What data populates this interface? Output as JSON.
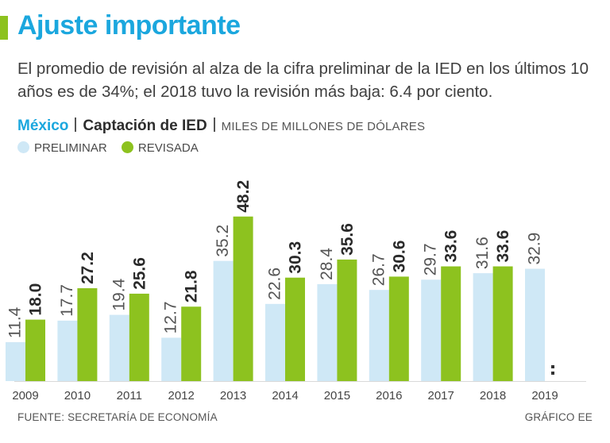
{
  "colors": {
    "accent": "#8dc21f",
    "title": "#1ba7de",
    "preliminar": "#cfe8f6",
    "revisada": "#8dc21f",
    "text": "#3a3a3a"
  },
  "title": "Ajuste importante",
  "subtitle": "El promedio de revisión al alza de la cifra preliminar de la IED en los últimos 10 años es de 34%; el 2018 tuvo la revisión más baja: 6.4 por ciento.",
  "heading": {
    "country": "México",
    "series_title": "Captación de IED",
    "units": "MILES DE MILLONES DE DÓLARES"
  },
  "legend": {
    "preliminar": "PRELIMINAR",
    "revisada": "REVISADA"
  },
  "chart_data": {
    "type": "bar",
    "title": "Captación de IED",
    "ylabel": "Miles de millones de dólares",
    "xlabel": "",
    "ylim": [
      0,
      50
    ],
    "categories": [
      "2009",
      "2010",
      "2011",
      "2012",
      "2013",
      "2014",
      "2015",
      "2016",
      "2017",
      "2018",
      "2019"
    ],
    "series": [
      {
        "name": "PRELIMINAR",
        "values": [
          11.4,
          17.7,
          19.4,
          12.7,
          35.2,
          22.6,
          28.4,
          26.7,
          29.7,
          31.6,
          32.9
        ],
        "labels": [
          "11.4",
          "17.7",
          "19.4",
          "12.7",
          "35.2",
          "22.6",
          "28.4",
          "26.7",
          "29.7",
          "31.6",
          "32.9"
        ]
      },
      {
        "name": "REVISADA",
        "values": [
          18.0,
          27.2,
          25.6,
          21.8,
          48.2,
          30.3,
          35.6,
          30.6,
          33.6,
          33.6,
          null
        ],
        "labels": [
          "18.0",
          "27.2",
          "25.6",
          "21.8",
          "48.2",
          "30.3",
          "35.6",
          "30.6",
          "33.6",
          "33.6",
          ""
        ]
      }
    ]
  },
  "footer": {
    "source": "FUENTE: SECRETARÍA DE ECONOMÍA",
    "credit": "GRÁFICO EE"
  }
}
